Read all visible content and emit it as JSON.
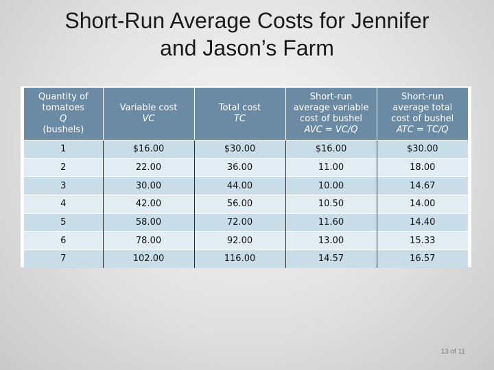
{
  "slide": {
    "title_line1": "Short-Run Average Costs for Jennifer",
    "title_line2": "and Jason’s Farm",
    "page_number": "13 of 11"
  },
  "table": {
    "headers": [
      {
        "lines": [
          "Quantity of",
          "tomatoes"
        ],
        "symbol": "Q",
        "tail": "(bushels)"
      },
      {
        "lines": [
          "Variable cost"
        ],
        "symbol": "VC",
        "tail": ""
      },
      {
        "lines": [
          "Total cost"
        ],
        "symbol": "TC",
        "tail": ""
      },
      {
        "lines": [
          "Short-run",
          "average variable",
          "cost of bushel"
        ],
        "symbol": "AVC = VC/Q",
        "tail": ""
      },
      {
        "lines": [
          "Short-run",
          "average total",
          "cost of bushel"
        ],
        "symbol": "ATC = TC/Q",
        "tail": ""
      }
    ],
    "rows": [
      [
        "1",
        "$16.00",
        "$30.00",
        "$16.00",
        "$30.00"
      ],
      [
        "2",
        "22.00",
        "36.00",
        "11.00",
        "18.00"
      ],
      [
        "3",
        "30.00",
        "44.00",
        "10.00",
        "14.67"
      ],
      [
        "4",
        "42.00",
        "56.00",
        "10.50",
        "14.00"
      ],
      [
        "5",
        "58.00",
        "72.00",
        "11.60",
        "14.40"
      ],
      [
        "6",
        "78.00",
        "92.00",
        "13.00",
        "15.33"
      ],
      [
        "7",
        "102.00",
        "116.00",
        "14.57",
        "16.57"
      ]
    ]
  }
}
